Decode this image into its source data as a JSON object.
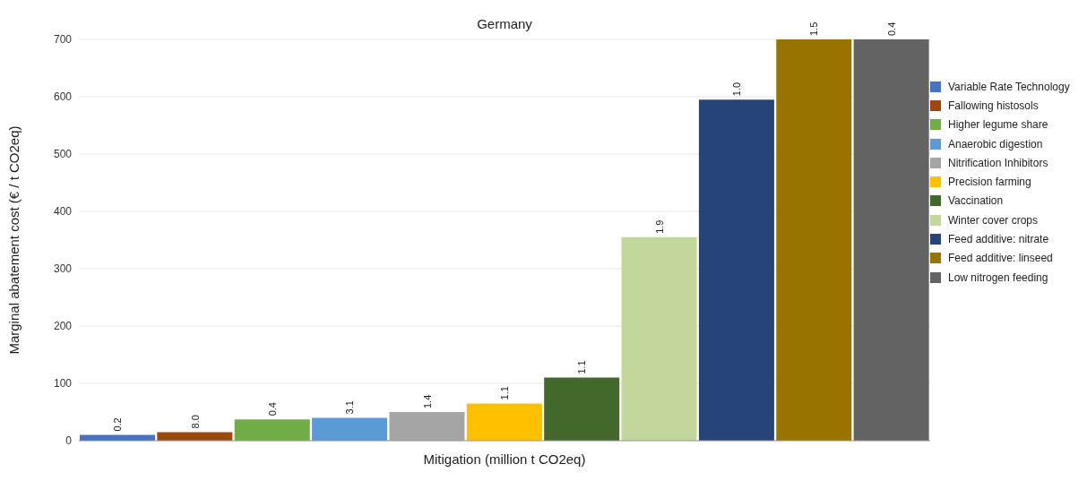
{
  "chart_data": {
    "type": "bar",
    "title": "Germany",
    "xlabel": "Mitigation (million t CO2eq)",
    "ylabel": "Marginal abatement cost (€ / t CO2eq)",
    "categories": [
      null,
      null,
      null,
      null,
      null,
      null,
      null,
      null,
      null,
      null,
      null
    ],
    "ylim": [
      0,
      700
    ],
    "yticks": [
      0,
      100,
      200,
      300,
      400,
      500,
      600,
      700
    ],
    "grid": "y",
    "legend": "right",
    "tick_labels": "y",
    "series": [
      {
        "name": "Variable Rate Technology",
        "color": "#4472c4",
        "values": [
          10,
          null,
          null,
          null,
          null,
          null,
          null,
          null,
          null,
          null,
          null
        ]
      },
      {
        "name": "Fallowing histosols",
        "color": "#9e480e",
        "values": [
          null,
          15,
          null,
          null,
          null,
          null,
          null,
          null,
          null,
          null,
          null
        ]
      },
      {
        "name": "Higher legume share",
        "color": "#70ad47",
        "values": [
          null,
          null,
          37,
          null,
          null,
          null,
          null,
          null,
          null,
          null,
          null
        ]
      },
      {
        "name": "Anaerobic digestion",
        "color": "#5b9bd5",
        "values": [
          null,
          null,
          null,
          40,
          null,
          null,
          null,
          null,
          null,
          null,
          null
        ]
      },
      {
        "name": "Nitrification Inhibitors",
        "color": "#a5a5a5",
        "values": [
          null,
          null,
          null,
          null,
          50,
          null,
          null,
          null,
          null,
          null,
          null
        ]
      },
      {
        "name": "Precision farming",
        "color": "#ffc000",
        "values": [
          null,
          null,
          null,
          null,
          null,
          65,
          null,
          null,
          null,
          null,
          null
        ]
      },
      {
        "name": "Vaccination",
        "color": "#43682b",
        "values": [
          null,
          null,
          null,
          null,
          null,
          null,
          110,
          null,
          null,
          null,
          null
        ]
      },
      {
        "name": "Winter cover crops",
        "color": "#c3d69b",
        "values": [
          null,
          null,
          null,
          null,
          null,
          null,
          null,
          355,
          null,
          null,
          null
        ]
      },
      {
        "name": "Feed additive: nitrate",
        "color": "#264478",
        "values": [
          null,
          null,
          null,
          null,
          null,
          null,
          null,
          null,
          595,
          null,
          null
        ]
      },
      {
        "name": "Feed additive: linseed",
        "color": "#997300",
        "values": [
          null,
          null,
          null,
          null,
          null,
          null,
          null,
          null,
          null,
          700,
          null
        ]
      },
      {
        "name": "Low nitrogen feeding",
        "color": "#636363",
        "values": [
          null,
          null,
          null,
          null,
          null,
          null,
          null,
          null,
          null,
          null,
          700
        ]
      }
    ],
    "annotations": [
      {
        "text": "0.2",
        "y": 10
      },
      {
        "text": "8.0",
        "y": 15
      },
      {
        "text": "0.4",
        "y": 37
      },
      {
        "text": "3.1",
        "y": 40
      },
      {
        "text": "1.4",
        "y": 50
      },
      {
        "text": "1.1",
        "y": 65
      },
      {
        "text": "1.1",
        "y": 110
      },
      {
        "text": "1.9",
        "y": 355
      },
      {
        "text": "1.0",
        "y": 595
      },
      {
        "text": "1.5",
        "y": 700
      },
      {
        "text": "0.4",
        "y": 700
      }
    ]
  }
}
